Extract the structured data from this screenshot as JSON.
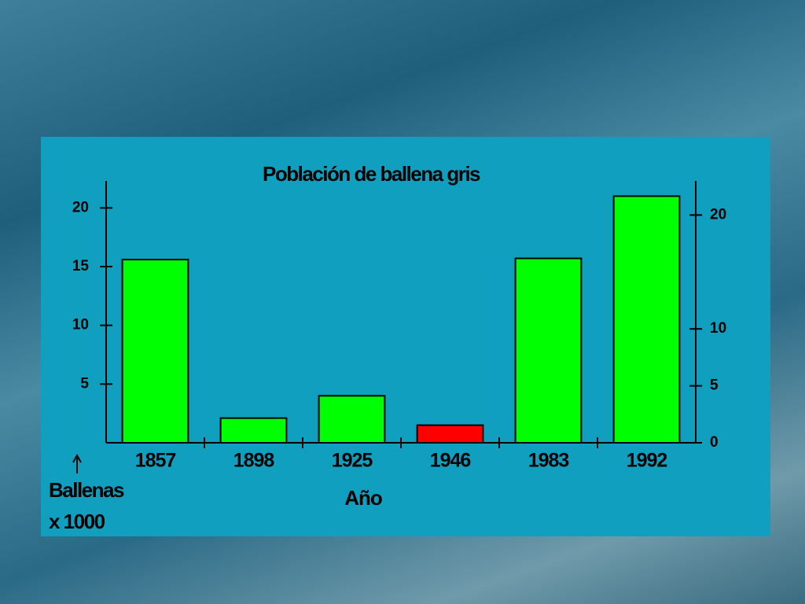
{
  "chart_data": {
    "type": "bar",
    "title": "Población de ballena gris",
    "x_label": "Año",
    "y_label": [
      "Ballenas",
      "x 1000"
    ],
    "categories": [
      "1857",
      "1898",
      "1925",
      "1946",
      "1983",
      "1992"
    ],
    "values": [
      15.6,
      2.1,
      4.0,
      1.5,
      15.7,
      21.0
    ],
    "colors": [
      "#00ff00",
      "#00ff00",
      "#00ff00",
      "#ff0000",
      "#00ff00",
      "#00ff00"
    ],
    "ylim": [
      0,
      22.3
    ],
    "yticks": [
      5,
      10,
      15,
      20
    ],
    "y2lim": [
      0,
      23
    ],
    "y2ticks": [
      0,
      5,
      10,
      20
    ]
  }
}
